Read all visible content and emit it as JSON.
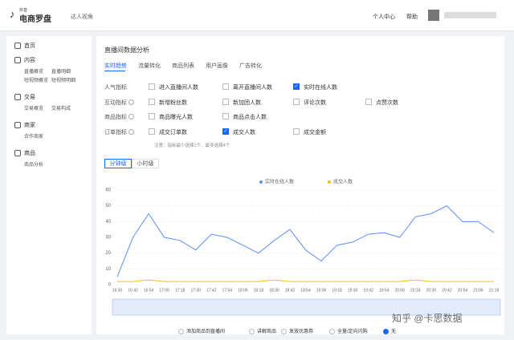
{
  "header": {
    "logo_small": "抖音",
    "logo": "电商罗盘",
    "view": "达人视角",
    "links": [
      "个人中心",
      "帮助"
    ]
  },
  "sidebar": [
    {
      "title": "首页",
      "items": []
    },
    {
      "title": "内容",
      "items": [
        "直播概览",
        "直播明细",
        "短视频概览",
        "短视频明细"
      ]
    },
    {
      "title": "交易",
      "items": [
        "交易概览",
        "交易构成"
      ]
    },
    {
      "title": "商家",
      "items": [
        "合作商家"
      ]
    },
    {
      "title": "商品",
      "items": [
        "商品分析"
      ]
    }
  ],
  "main": {
    "title": "直播间数据分析",
    "tabs": [
      "实时趋势",
      "流量转化",
      "商品列表",
      "用户画像",
      "广告转化"
    ],
    "metric_groups": [
      {
        "label": "人气指标",
        "items": [
          {
            "label": "进入直播间人数",
            "checked": false
          },
          {
            "label": "离开直播间人数",
            "checked": false
          },
          {
            "label": "实时在线人数",
            "checked": true
          }
        ]
      },
      {
        "label": "互动指标",
        "items": [
          {
            "label": "新增粉丝数",
            "checked": false
          },
          {
            "label": "新加团人数",
            "checked": false
          },
          {
            "label": "评论次数",
            "checked": false
          },
          {
            "label": "点赞次数",
            "checked": false
          }
        ]
      },
      {
        "label": "商品指标",
        "items": [
          {
            "label": "商品曝光人数",
            "checked": false
          },
          {
            "label": "商品点击人数",
            "checked": false
          }
        ]
      },
      {
        "label": "订单指标",
        "items": [
          {
            "label": "成交订单数",
            "checked": false
          },
          {
            "label": "成交人数",
            "checked": true
          },
          {
            "label": "成交金额",
            "checked": false
          }
        ]
      }
    ],
    "note": "注意：指标最少选择1个、最多选择4个",
    "granularity": [
      "分钟级",
      "小时级"
    ],
    "actions": [
      "添加商品到直播间",
      "讲解商品",
      "发放优惠券",
      "全量/定向闪购",
      "无"
    ],
    "watermark": "知乎 @卡思数据"
  },
  "chart_data": {
    "type": "line",
    "categories": [
      "16:30",
      "16:42",
      "16:54",
      "17:06",
      "17:18",
      "17:30",
      "17:42",
      "17:54",
      "18:06",
      "18:18",
      "18:30",
      "18:42",
      "18:54",
      "19:06",
      "19:18",
      "19:30",
      "19:42",
      "19:54",
      "20:06",
      "20:18",
      "20:30",
      "20:42",
      "20:54",
      "21:06",
      "21:18"
    ],
    "series": [
      {
        "name": "实时在线人数",
        "color": "#5b8ff9",
        "values": [
          5,
          30,
          45,
          30,
          28,
          22,
          32,
          30,
          25,
          20,
          28,
          35,
          22,
          15,
          25,
          27,
          32,
          33,
          30,
          43,
          45,
          50,
          40,
          40,
          33
        ]
      },
      {
        "name": "成交人数",
        "color": "#f6bd16",
        "values": [
          2,
          2,
          3,
          2,
          2,
          2,
          2,
          2,
          2,
          2,
          3,
          2,
          2,
          2,
          2,
          2,
          2,
          2,
          2,
          3,
          2,
          2,
          2,
          2,
          2
        ]
      }
    ],
    "ylim": [
      0,
      60
    ],
    "yticks": [
      0,
      10,
      20,
      30,
      40,
      50,
      60
    ],
    "grid": true,
    "legend": "top"
  }
}
